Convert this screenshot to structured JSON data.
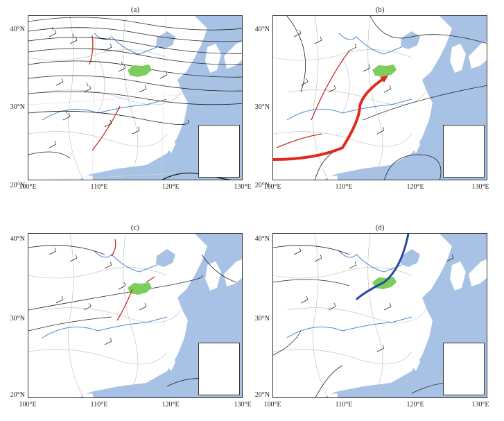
{
  "panels": [
    {
      "id": "a",
      "label": "(a)"
    },
    {
      "id": "b",
      "label": "(b)"
    },
    {
      "id": "c",
      "label": "(c)"
    },
    {
      "id": "d",
      "label": "(d)"
    }
  ],
  "axes": {
    "y_ticks": [
      "40°N",
      "30°N",
      "20°N"
    ],
    "x_ticks": [
      "100°E",
      "110°E",
      "120°E",
      "130°E"
    ]
  },
  "colors": {
    "ocean": "#a7c2e4",
    "river": "#4d86d0",
    "highlight_region": "#7ccd5e",
    "trough_line": "#cc2a1e",
    "shear_line": "#27489c",
    "contour": "#222222",
    "border": "#b8b8b8"
  }
}
